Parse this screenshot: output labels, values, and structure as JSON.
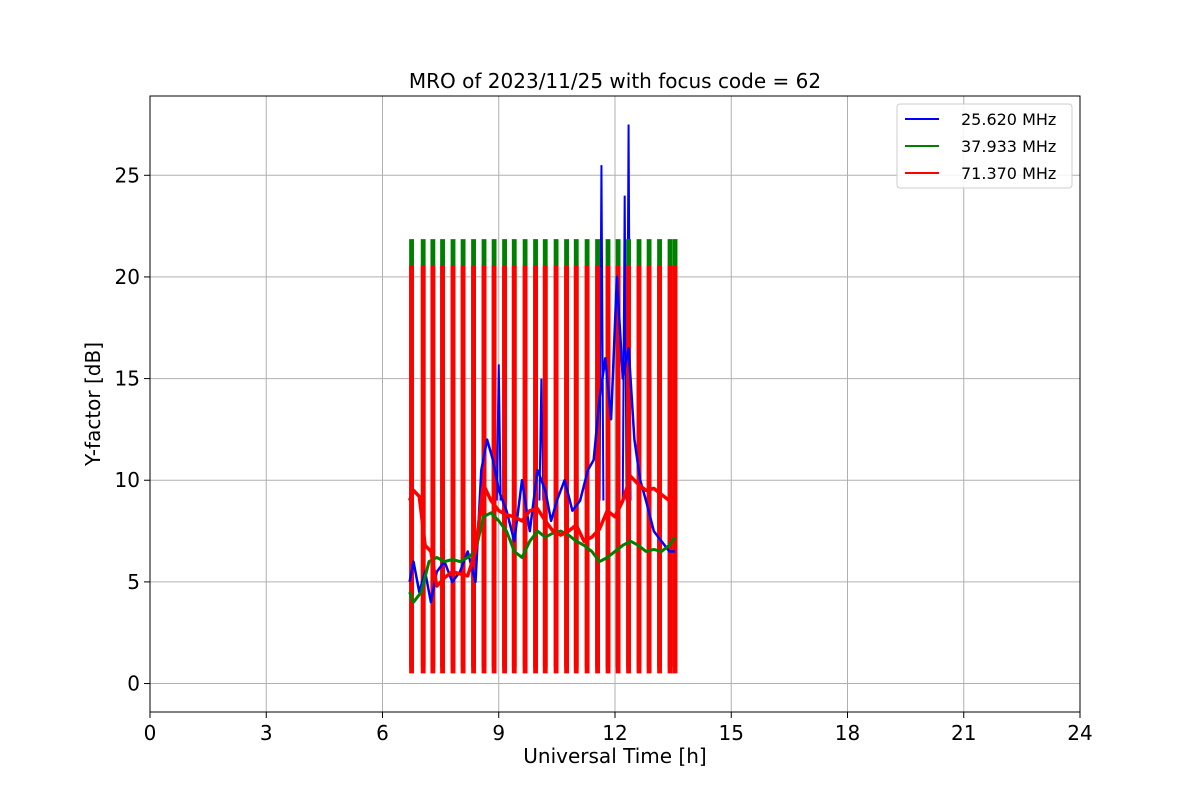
{
  "chart_data": {
    "type": "line",
    "title": "MRO of 2023/11/25 with focus code = 62",
    "xlabel": "Universal Time [h]",
    "ylabel": "Y-factor [dB]",
    "xlim": [
      0,
      24
    ],
    "ylim": [
      -1.4,
      28.9
    ],
    "xticks": [
      0,
      3,
      6,
      9,
      12,
      15,
      18,
      21,
      24
    ],
    "yticks": [
      0,
      5,
      10,
      15,
      20,
      25
    ],
    "grid": true,
    "legend_position": "top-right",
    "series": [
      {
        "name": "25.620 MHz",
        "color": "#0000ff",
        "x": [
          6.7,
          6.8,
          6.95,
          7.1,
          7.25,
          7.4,
          7.6,
          7.8,
          8.0,
          8.2,
          8.4,
          8.55,
          8.7,
          8.85,
          9.0,
          9.2,
          9.4,
          9.6,
          9.8,
          10.0,
          10.2,
          10.35,
          10.5,
          10.7,
          10.9,
          11.1,
          11.3,
          11.45,
          11.6,
          11.75,
          11.9,
          12.05,
          12.2,
          12.35,
          12.5,
          12.65,
          12.8,
          13.0,
          13.2,
          13.4,
          13.55
        ],
        "y": [
          5.0,
          6.0,
          4.5,
          5.5,
          4.0,
          5.5,
          6.0,
          5.0,
          5.5,
          6.5,
          5.0,
          10.5,
          12.0,
          11.0,
          9.5,
          8.5,
          7.0,
          10.0,
          7.5,
          10.5,
          9.5,
          8.0,
          9.0,
          10.0,
          8.5,
          9.0,
          10.5,
          11.0,
          14.0,
          16.0,
          13.0,
          20.0,
          15.0,
          16.5,
          12.0,
          10.0,
          9.0,
          7.5,
          7.0,
          6.5,
          6.5
        ]
      },
      {
        "name": "37.933 MHz",
        "color": "#008000",
        "x": [
          6.7,
          6.8,
          7.0,
          7.2,
          7.4,
          7.6,
          7.8,
          8.0,
          8.2,
          8.4,
          8.6,
          8.8,
          9.0,
          9.2,
          9.4,
          9.6,
          9.8,
          10.0,
          10.2,
          10.4,
          10.6,
          10.8,
          11.0,
          11.2,
          11.4,
          11.6,
          11.8,
          12.0,
          12.2,
          12.4,
          12.6,
          12.8,
          13.0,
          13.2,
          13.4,
          13.55
        ],
        "y": [
          4.5,
          4.0,
          4.5,
          6.0,
          6.2,
          6.0,
          6.1,
          6.0,
          6.2,
          6.5,
          8.2,
          8.4,
          8.0,
          7.5,
          6.5,
          6.2,
          7.0,
          7.5,
          7.2,
          7.4,
          7.5,
          7.3,
          7.0,
          6.8,
          6.5,
          6.0,
          6.2,
          6.5,
          6.8,
          7.0,
          6.8,
          6.5,
          6.6,
          6.5,
          6.8,
          7.2
        ]
      },
      {
        "name": "71.370 MHz",
        "color": "#ff0000",
        "x": [
          6.7,
          6.8,
          6.95,
          7.1,
          7.25,
          7.4,
          7.6,
          7.8,
          8.0,
          8.2,
          8.4,
          8.6,
          8.8,
          9.0,
          9.2,
          9.4,
          9.6,
          9.8,
          10.0,
          10.2,
          10.4,
          10.6,
          10.8,
          11.0,
          11.2,
          11.4,
          11.6,
          11.8,
          12.0,
          12.2,
          12.4,
          12.6,
          12.8,
          13.0,
          13.2,
          13.4,
          13.55
        ],
        "y": [
          9.0,
          9.5,
          9.2,
          6.8,
          6.5,
          4.8,
          5.2,
          5.5,
          5.4,
          5.3,
          6.5,
          9.8,
          9.0,
          8.5,
          8.3,
          8.2,
          8.0,
          8.5,
          8.6,
          8.0,
          7.5,
          7.3,
          7.5,
          7.8,
          7.0,
          7.2,
          7.6,
          8.5,
          8.2,
          9.0,
          10.2,
          9.8,
          9.5,
          9.6,
          9.3,
          9.0,
          9.2
        ]
      }
    ],
    "spikes": [
      {
        "series": "37.933 MHz",
        "peak": 21.8,
        "low": 0.8,
        "x": [
          6.75,
          7.05,
          7.3,
          7.55,
          7.82,
          8.08,
          8.35,
          8.62,
          8.88,
          9.15,
          9.4,
          9.68,
          9.95,
          10.2,
          10.48,
          10.75,
          11.0,
          11.28,
          11.55,
          11.82,
          12.08,
          12.35,
          12.62,
          12.88,
          13.15,
          13.42,
          13.55
        ]
      },
      {
        "series": "71.370 MHz",
        "peak": 20.5,
        "low": 0.5,
        "x": [
          6.75,
          7.05,
          7.3,
          7.55,
          7.82,
          8.08,
          8.35,
          8.62,
          8.88,
          9.15,
          9.4,
          9.68,
          9.95,
          10.2,
          10.48,
          10.75,
          11.0,
          11.28,
          11.55,
          11.82,
          12.08,
          12.35,
          12.62,
          12.88,
          13.15,
          13.42,
          13.55
        ]
      }
    ],
    "blue_peaks": [
      {
        "x": 11.65,
        "y": 25.5
      },
      {
        "x": 12.35,
        "y": 27.5
      },
      {
        "x": 12.25,
        "y": 24.0
      },
      {
        "x": 9.0,
        "y": 15.7
      },
      {
        "x": 10.1,
        "y": 15.0
      }
    ]
  }
}
